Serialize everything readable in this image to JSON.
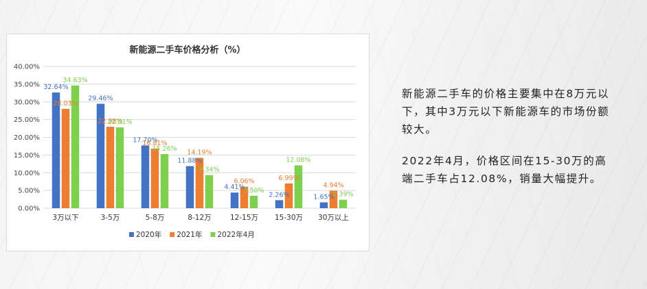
{
  "chart_data": {
    "type": "bar",
    "title": "新能源二手车价格分析（%）",
    "categories": [
      "3万以下",
      "3-5万",
      "5-8万",
      "8-12万",
      "12-15万",
      "15-30万",
      "30万以上"
    ],
    "series": [
      {
        "name": "2020年",
        "color": "#4472c4",
        "values": [
          32.64,
          29.46,
          17.7,
          11.88,
          4.41,
          2.26,
          1.65
        ],
        "labels": [
          "32.64%",
          "29.46%",
          "17.70%",
          "11.88%",
          "4.41%",
          "2.26%",
          "1.65%"
        ]
      },
      {
        "name": "2021年",
        "color": "#ed7d31",
        "values": [
          28.03,
          22.98,
          16.81,
          14.19,
          6.06,
          6.99,
          4.94
        ],
        "labels": [
          "28.03%",
          "22.98%",
          "16.81%",
          "14.19%",
          "6.06%",
          "6.99%",
          "4.94%"
        ]
      },
      {
        "name": "2022年4月",
        "color": "#7fcf4f",
        "values": [
          34.63,
          22.81,
          15.26,
          9.34,
          3.5,
          12.08,
          2.39
        ],
        "labels": [
          "34.63%",
          "22.81%",
          "15.26%",
          "9.34%",
          "3.50%",
          "12.08%",
          "2.39%"
        ]
      }
    ],
    "ylim": [
      0,
      40
    ],
    "yticks": [
      "0.00%",
      "5.00%",
      "10.00%",
      "15.00%",
      "20.00%",
      "25.00%",
      "30.00%",
      "35.00%",
      "40.00%"
    ],
    "grid": true,
    "legend": "bottom"
  },
  "side": {
    "para1": "新能源二手车的价格主要集中在8万元以下，其中3万元以下新能源车的市场份额较大。",
    "para2": "2022年4月，价格区间在15-30万的高端二手车占12.08%，销量大幅提升。"
  }
}
